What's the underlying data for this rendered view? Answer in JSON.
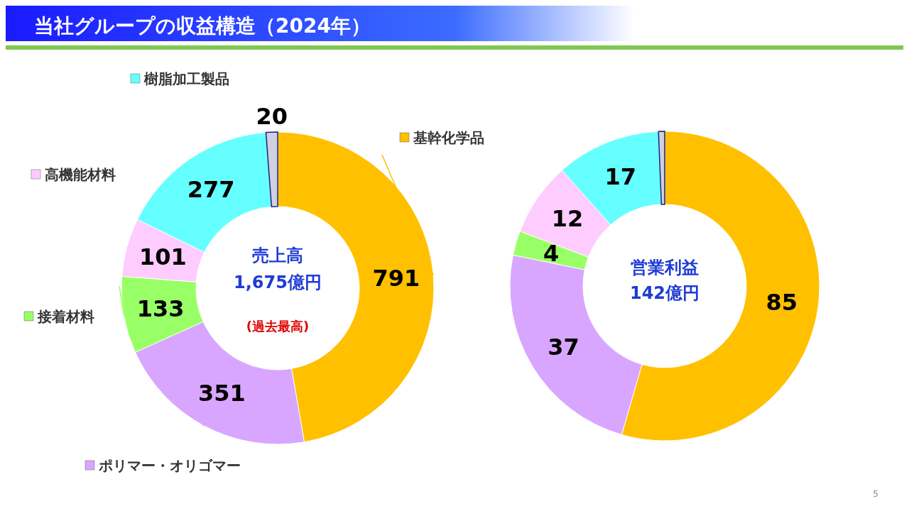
{
  "chart_data": [
    {
      "type": "donut",
      "title": "当社グループの収益構造（2024年）",
      "categories": [
        "基幹化学品",
        "ポリマー・オリゴマー",
        "接着材料",
        "高機能材料",
        "樹脂加工製品",
        null
      ],
      "values": [
        791,
        351,
        133,
        101,
        277,
        20
      ],
      "colors": [
        "#ffc000",
        "#d9a6ff",
        "#99ff66",
        "#ffccff",
        "#66ffff",
        "#d0d0e0"
      ],
      "data_labels": true,
      "legend": "left",
      "annotations": [
        "売上高",
        "1,675億円",
        "(過去最高)"
      ]
    },
    {
      "type": "donut",
      "categories": [
        null,
        null,
        null,
        null,
        null,
        null
      ],
      "values": [
        85,
        37,
        4,
        12,
        17,
        1
      ],
      "value_labels": [
        "85",
        "37",
        "4",
        "12",
        "17",
        null
      ],
      "colors": [
        "#ffc000",
        "#d9a6ff",
        "#99ff66",
        "#ffccff",
        "#66ffff",
        "#d0d0e0"
      ],
      "annotations": [
        "営業利益",
        "142億円",
        "5"
      ]
    }
  ]
}
